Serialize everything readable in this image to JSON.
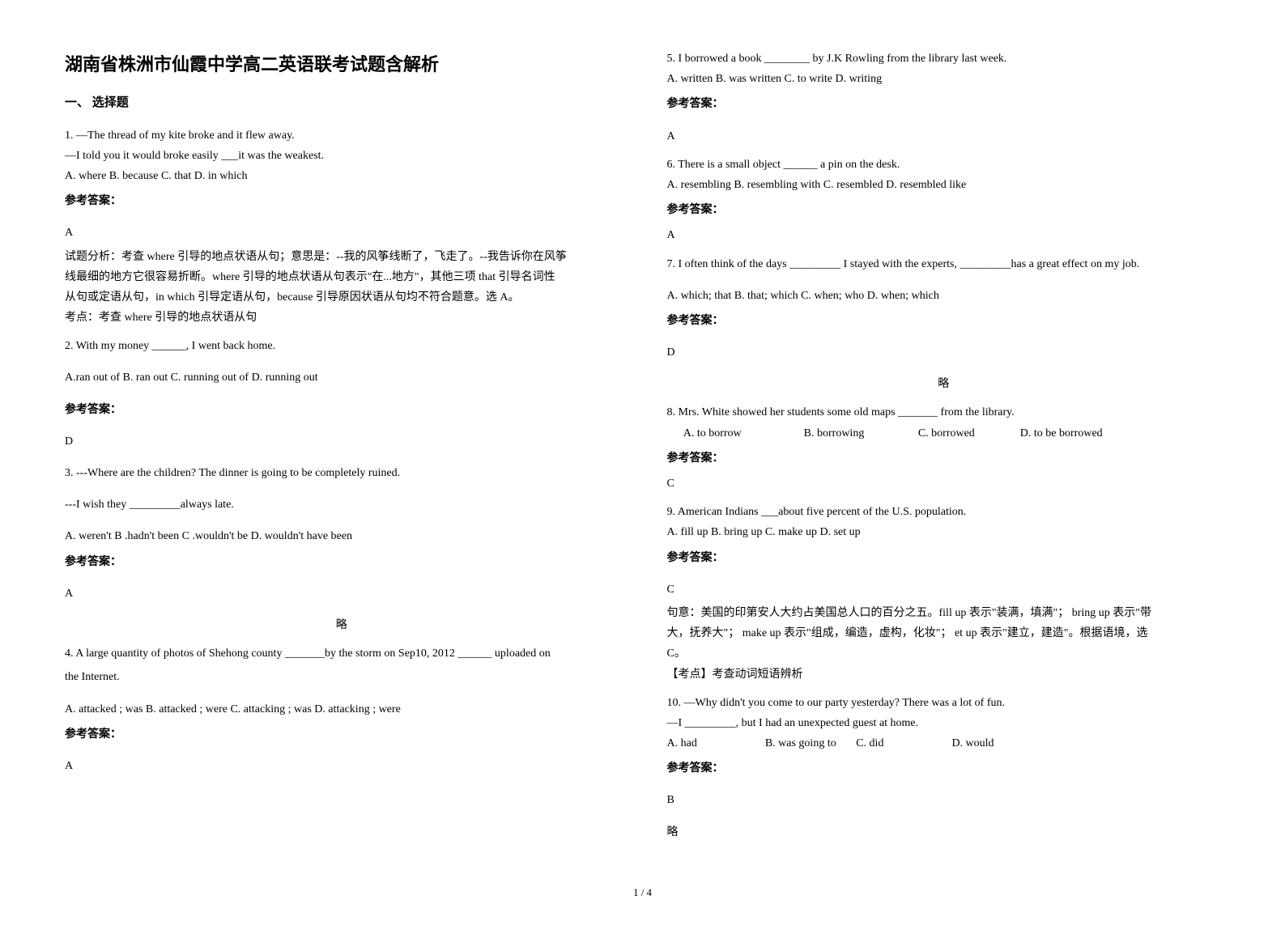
{
  "title": "湖南省株洲市仙霞中学高二英语联考试题含解析",
  "section1": "一、 选择题",
  "q1": {
    "line1": "1. —The thread of my kite broke and it flew away.",
    "line2": "—I told you it would broke easily ___it was the weakest.",
    "opts": "A. where    B. because               C. that    D. in which",
    "ansLabel": "参考答案：",
    "ans": "A",
    "exp1": "试题分析：考查 where 引导的地点状语从句；意思是：--我的风筝线断了，飞走了。--我告诉你在风筝",
    "exp2": "线最细的地方它很容易折断。where 引导的地点状语从句表示\"在...地方\"，其他三项 that 引导名词性",
    "exp3": "从句或定语从句，in which 引导定语从句，because 引导原因状语从句均不符合题意。选 A。",
    "exp4": "考点：考查 where 引导的地点状语从句"
  },
  "q2": {
    "line1": "2. With my money ______, I went back home.",
    "opts": "A.ran out of  B. ran out  C. running out of  D. running out",
    "ansLabel": "参考答案：",
    "ans": "D"
  },
  "q3": {
    "line1": "3. ---Where are the children? The dinner is going to be completely ruined.",
    "line2": "    ---I wish they _________always late.",
    "opts": "A. weren't    B .hadn't been    C .wouldn't be     D. wouldn't have been",
    "ansLabel": "参考答案：",
    "ans": "A",
    "lue": "略"
  },
  "q4": {
    "line1": "   4. A large quantity of photos of Shehong county _______by the storm on Sep10, 2012 ______ uploaded on",
    "line2": "the Internet.",
    "opts": "A. attacked ; was       B. attacked ; were       C. attacking ; was      D. attacking ; were",
    "ansLabel": "参考答案：",
    "ans": "A"
  },
  "q5": {
    "line1": "5. I borrowed a book ________ by J.K Rowling from the library last week.",
    "opts": "A. written   B. was written  C. to write    D. writing",
    "ansLabel": "参考答案：",
    "ans": "A"
  },
  "q6": {
    "line1": "6. There is a small object ______ a pin on the desk.",
    "opts": "A. resembling       B. resembling with   C. resembled       D. resembled like",
    "ansLabel": "参考答案：",
    "ans": "A"
  },
  "q7": {
    "line1": "7. I often think of the days _________ I stayed with the experts, _________has a great effect on my job.",
    "opts": "A. which; that     B. that; which           C. when; who     D. when; which",
    "ansLabel": "参考答案：",
    "ans": "D",
    "lue": "略"
  },
  "q8": {
    "line1": "8. Mrs. White showed her students some old maps _______ from the library.",
    "opts": "      A. to borrow                      B. borrowing                   C. borrowed                D. to be borrowed",
    "ansLabel": "参考答案：",
    "ans": "C"
  },
  "q9": {
    "line1": "9. American Indians ___about five percent of the U.S. population.",
    "opts": "A. fill up    B. bring up     C. make up   D. set up",
    "ansLabel": "参考答案：",
    "ans": "C",
    "exp1": "句意：美国的印第安人大约占美国总人口的百分之五。fill up 表示\"装满，填满\"；   bring up 表示\"带",
    "exp2": "大，抚养大\"；  make up 表示\"组成，编造，虚构，化妆\"；  et up 表示\"建立，建造\"。根据语境，选",
    "exp3": "C。",
    "exp4": "【考点】考查动词短语辨析"
  },
  "q10": {
    "line1": "10. —Why didn't you come to our party yesterday? There was a lot of fun.",
    "line2": "—I _________, but I had an unexpected guest at home.",
    "opts": "A. had                        B. was going to       C. did                        D. would",
    "ansLabel": "参考答案：",
    "ans": "B",
    "lue": "略"
  },
  "footer": "1 / 4"
}
